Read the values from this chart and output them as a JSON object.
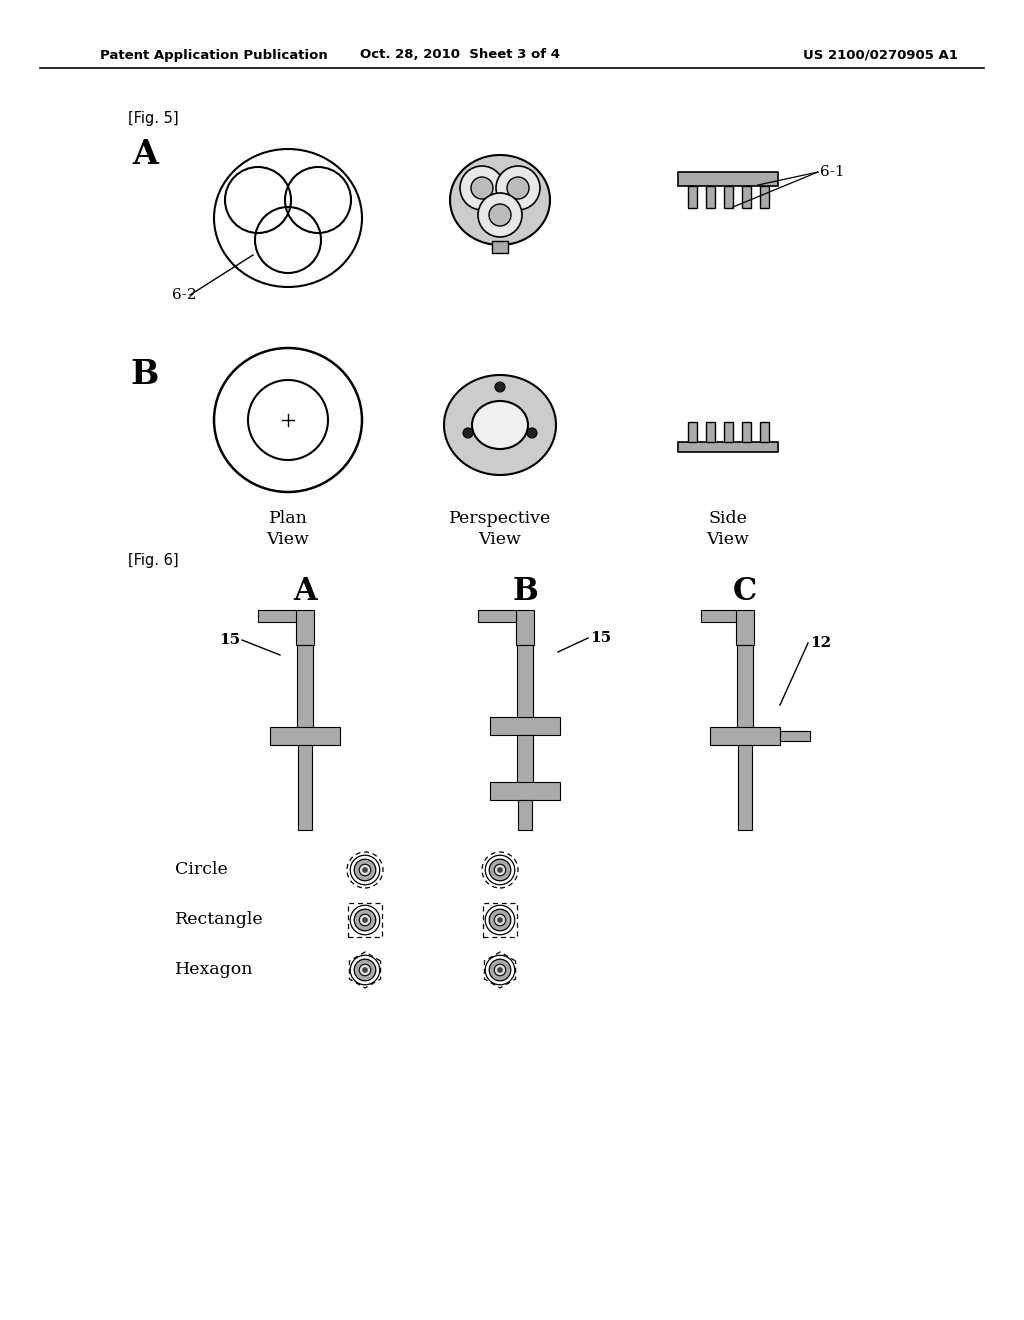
{
  "title_left": "Patent Application Publication",
  "title_mid": "Oct. 28, 2010  Sheet 3 of 4",
  "title_right": "US 2100/0270905 A1",
  "fig5_label": "[Fig. 5]",
  "fig6_label": "[Fig. 6]",
  "fig5_A_label": "A",
  "fig5_B_label": "B",
  "fig6_A_label": "A",
  "fig6_B_label": "B",
  "fig6_C_label": "C",
  "view_plan": "Plan\nView",
  "view_perspective": "Perspective\nView",
  "view_side": "Side\nView",
  "ref_62": "6-2",
  "ref_61": "6-1",
  "ref_15a": "15",
  "ref_15b": "15",
  "ref_12": "12",
  "shape_circle": "Circle",
  "shape_rectangle": "Rectangle",
  "shape_hexagon": "Hexagon",
  "bg_color": "#ffffff",
  "line_color": "#000000",
  "gray_fill": "#aaaaaa",
  "gray_light": "#cccccc",
  "gray_dark": "#888888"
}
